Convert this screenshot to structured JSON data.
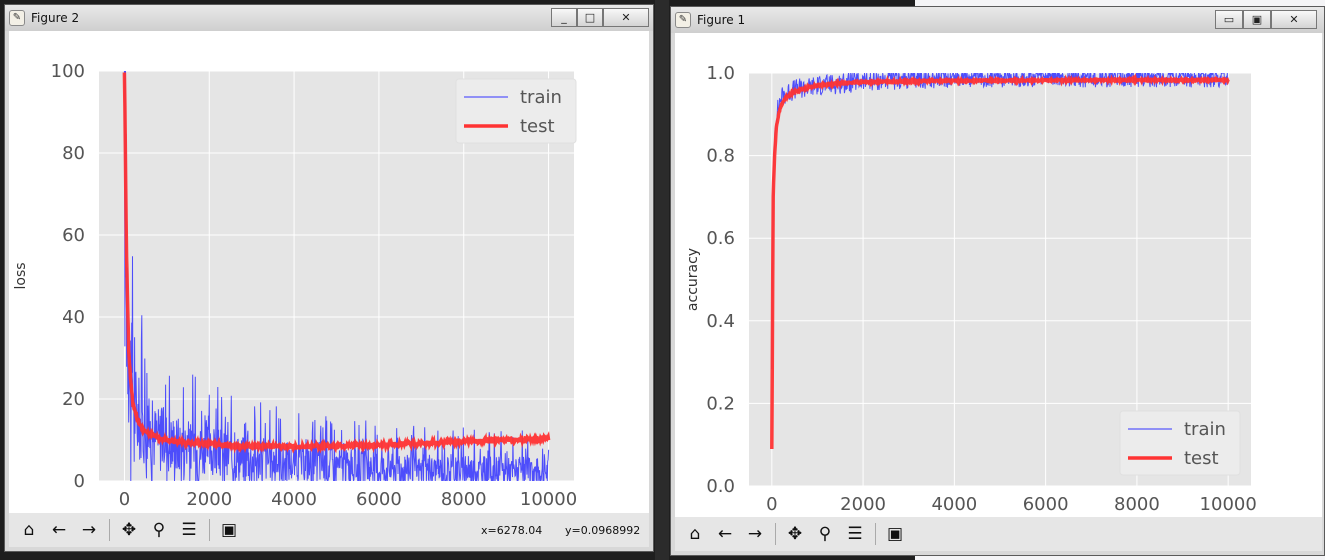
{
  "figures": [
    {
      "title": "Figure 2",
      "window_buttons": [
        "_",
        "□",
        "✕"
      ],
      "coords": {
        "x": "x=6278.04",
        "y": "y=0.0968992"
      },
      "toolbar": [
        "home-icon",
        "back-arrow-icon",
        "forward-arrow-icon",
        "pan-icon",
        "zoom-icon",
        "subplots-config-icon",
        "save-icon"
      ],
      "chart_data": {
        "type": "line",
        "ylabel": "loss",
        "xlim": [
          -600,
          10600
        ],
        "ylim": [
          0,
          100
        ],
        "x_ticks": [
          0,
          2000,
          4000,
          6000,
          8000,
          10000
        ],
        "x_tick_labels": [
          "0",
          "2000",
          "4000",
          "6000",
          "8000",
          "10000"
        ],
        "y_ticks": [
          0,
          20,
          40,
          60,
          80,
          100
        ],
        "y_tick_labels": [
          "0",
          "20",
          "40",
          "60",
          "80",
          "100"
        ],
        "grid": true,
        "legend_position": "top-right",
        "series": [
          {
            "name": "train",
            "color": "#3333ff",
            "width": 1,
            "x": [
              0,
              50,
              100,
              150,
              200,
              300,
              400,
              600,
              800,
              1000,
              1500,
              2000,
              3000,
              4000,
              5000,
              6000,
              7000,
              8000,
              9000,
              10000
            ],
            "y": [
              62,
              45,
              30,
              22,
              18,
              14,
              12,
              10,
              9,
              8.5,
              7,
              6,
              4.5,
              3.5,
              3,
              2.5,
              2,
              2,
              1.8,
              1.5
            ],
            "noise": 10
          },
          {
            "name": "test",
            "color": "#ff3333",
            "width": 3.5,
            "x": [
              0,
              50,
              100,
              150,
              200,
              300,
              400,
              600,
              800,
              1000,
              1500,
              2000,
              3000,
              4000,
              5000,
              6000,
              7000,
              8000,
              9000,
              10000
            ],
            "y": [
              100,
              55,
              32,
              24,
              19,
              15,
              13,
              11.5,
              10.5,
              10,
              9.3,
              9,
              8.5,
              8.3,
              8.5,
              8.8,
              9.2,
              9.6,
              10,
              10.3
            ],
            "noise": 0.5
          }
        ]
      }
    },
    {
      "title": "Figure 1",
      "window_buttons": [
        "▭",
        "▣",
        "✕"
      ],
      "toolbar": [
        "home-icon",
        "back-arrow-icon",
        "forward-arrow-icon",
        "pan-icon",
        "zoom-icon",
        "subplots-config-icon",
        "save-icon"
      ],
      "chart_data": {
        "type": "line",
        "ylabel": "accuracy",
        "xlim": [
          -500,
          10500
        ],
        "ylim": [
          0,
          1.0
        ],
        "x_ticks": [
          0,
          2000,
          4000,
          6000,
          8000,
          10000
        ],
        "x_tick_labels": [
          "0",
          "2000",
          "4000",
          "6000",
          "8000",
          "10000"
        ],
        "y_ticks": [
          0,
          0.2,
          0.4,
          0.6,
          0.8,
          1.0
        ],
        "y_tick_labels": [
          "0.0",
          "0.2",
          "0.4",
          "0.6",
          "0.8",
          "1.0"
        ],
        "grid": true,
        "legend_position": "bottom-right",
        "series": [
          {
            "name": "train",
            "color": "#3333ff",
            "width": 1,
            "x": [
              0,
              30,
              60,
              100,
              150,
              200,
              300,
              500,
              800,
              1000,
              1500,
              2000,
              3000,
              4000,
              6000,
              8000,
              10000
            ],
            "y": [
              0.3,
              0.7,
              0.85,
              0.9,
              0.92,
              0.94,
              0.95,
              0.96,
              0.965,
              0.97,
              0.975,
              0.98,
              0.985,
              0.99,
              0.99,
              0.99,
              0.99
            ],
            "noise": 0.025
          },
          {
            "name": "test",
            "color": "#ff3333",
            "width": 3.5,
            "x": [
              0,
              30,
              60,
              100,
              150,
              200,
              300,
              500,
              800,
              1000,
              1500,
              2000,
              3000,
              4000,
              6000,
              8000,
              10000
            ],
            "y": [
              0.09,
              0.7,
              0.8,
              0.87,
              0.9,
              0.92,
              0.94,
              0.955,
              0.965,
              0.97,
              0.975,
              0.978,
              0.98,
              0.981,
              0.982,
              0.983,
              0.983
            ],
            "noise": 0.002
          }
        ]
      }
    }
  ]
}
